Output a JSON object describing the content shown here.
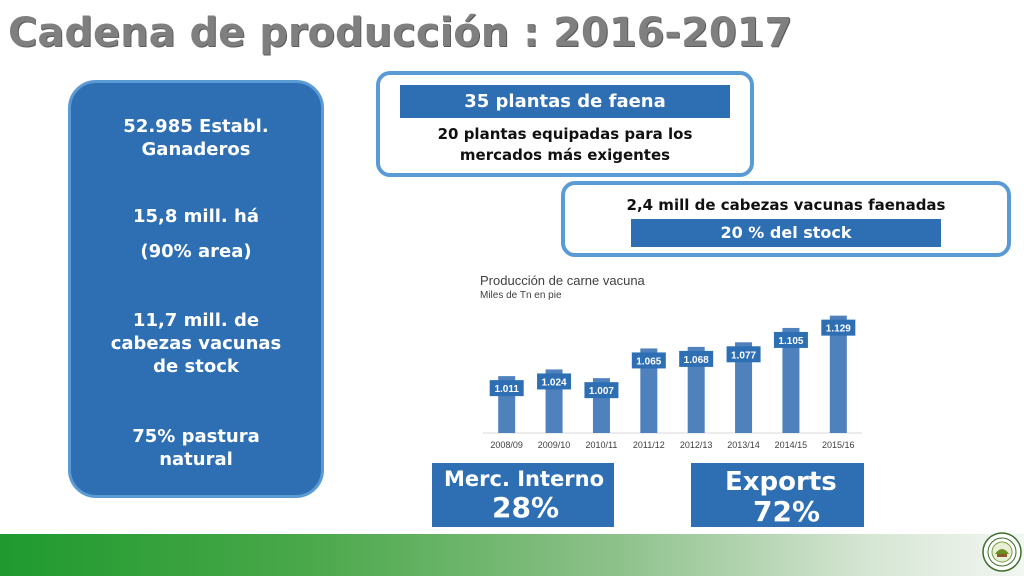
{
  "title": "Cadena de producción : 2016-2017",
  "left_panel": {
    "items": [
      "52.985 Establ.",
      "Ganaderos",
      "15,8 mill. há",
      "(90% area)",
      "11,7 mill. de",
      "cabezas vacunas",
      "de stock",
      "75% pastura",
      "natural"
    ]
  },
  "plants_box": {
    "header": "35 plantas de faena",
    "line1": "20 plantas equipadas para los",
    "line2": "mercados más exigentes"
  },
  "heads_box": {
    "line": "2,4 mill de cabezas vacunas faenadas",
    "sub": "20 %  del stock"
  },
  "chart_data": {
    "type": "bar",
    "title": "Producción de carne vacuna",
    "subtitle": "Miles de Tn en pie",
    "categories": [
      "2008/09",
      "2009/10",
      "2010/11",
      "2011/12",
      "2012/13",
      "2013/14",
      "2014/15",
      "2015/16"
    ],
    "values": [
      1011,
      1024,
      1007,
      1065,
      1068,
      1077,
      1105,
      1129
    ],
    "data_labels": [
      "1.011",
      "1.024",
      "1.007",
      "1.065",
      "1.068",
      "1.077",
      "1.105",
      "1.129"
    ],
    "bar_color": "#4f81bd",
    "label_color": "#2e6fb4"
  },
  "shares": {
    "internal_label": "Merc. Interno",
    "internal_value": "28%",
    "exports_label": "Exports",
    "exports_value": "72%"
  },
  "colors": {
    "accent": "#2e6fb4",
    "border": "#5b9bd5",
    "footer_green": "#1f9a2e"
  },
  "logo": {
    "icon": "association-seal-icon"
  }
}
